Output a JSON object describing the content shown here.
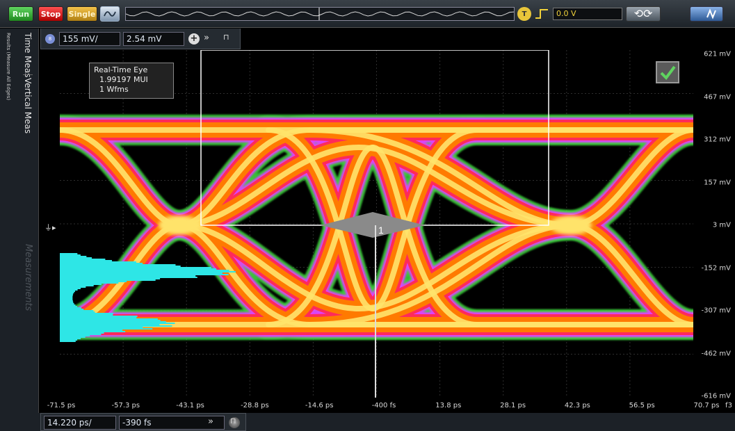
{
  "toolbar": {
    "run_label": "Run",
    "stop_label": "Stop",
    "single_label": "Single",
    "trigger_icon_label": "T",
    "trigger_level": "0.0 V",
    "undo_redo": "⟲⟳"
  },
  "left_tabs": {
    "results": "Results (Measure All Edges)",
    "time_meas": "Time Meas",
    "vertical_meas": "Vertical Meas",
    "measurements": "Measurements"
  },
  "channel": {
    "number": "8",
    "vertical_scale": "155 mV/",
    "vertical_offset": "2.54 mV"
  },
  "eye_info": {
    "title": "Real-Time Eye",
    "mui": "1.99197 MUI",
    "wfms": "1 Wfms"
  },
  "marker_label": "1",
  "y_axis_labels": [
    "621 mV",
    "467 mV",
    "312 mV",
    "157 mV",
    "3 mV",
    "-152 mV",
    "-307 mV",
    "-462 mV",
    "-616 mV"
  ],
  "x_axis_labels": [
    "-71.5 ps",
    "-57.3 ps",
    "-43.1 ps",
    "-28.8 ps",
    "-14.6 ps",
    "-400 fs",
    "13.8 ps",
    "28.1 ps",
    "42.3 ps",
    "56.5 ps",
    "70.7 ps"
  ],
  "x_axis_corner": "f3",
  "timebase": {
    "scale": "14.220 ps/",
    "delay": "-390 fs"
  },
  "colors": {
    "eye_core": "#ffe36b",
    "eye_mid": "#ff7a00",
    "eye_edge": "#ff2a5a",
    "eye_outer_magenta": "#e040ff",
    "eye_outer_green": "#3cd23c",
    "histogram": "#2ee6e6",
    "trigger": "#f2d23b"
  },
  "chart_data": {
    "type": "scatter",
    "title": "Real-Time Eye",
    "xlabel": "",
    "ylabel": "",
    "xlim": [
      -71.5,
      70.7
    ],
    "ylim": [
      -616,
      621
    ],
    "x_unit": "ps",
    "y_unit": "mV",
    "eye_crossings_ps": [
      -43.1,
      42.3
    ],
    "levels_mV": [
      3,
      312,
      -307
    ]
  }
}
